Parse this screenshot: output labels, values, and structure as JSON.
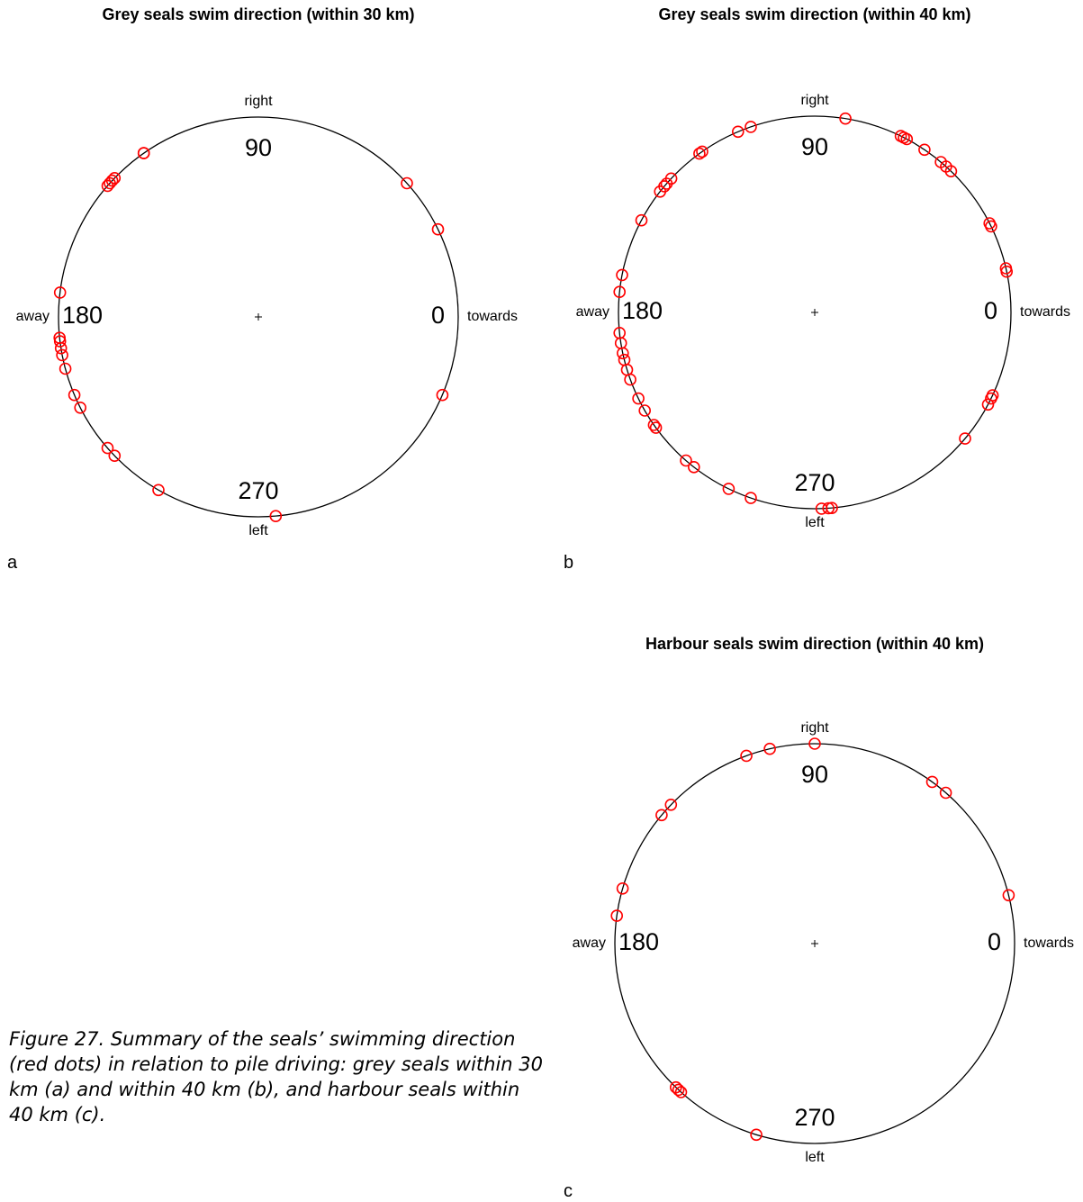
{
  "caption": "Figure 27. Summary of the seals’ swimming direction (red dots) in relation to pile driving: grey seals within 30 km (a) and within 40 km (b), and harbour seals within 40 km (c).",
  "colors": {
    "marker": "#ff0000",
    "circle": "#000000"
  },
  "chart_data": [
    {
      "id": "a",
      "type": "scatter",
      "subtype": "circular",
      "title": "Grey seals swim direction (within 30 km)",
      "panel_label": "a",
      "angle_labels": {
        "0": "0",
        "90": "90",
        "180": "180",
        "270": "270"
      },
      "direction_labels": {
        "0": "towards",
        "90": "right",
        "180": "away",
        "270": "left"
      },
      "angles_deg": [
        125,
        125,
        136,
        137,
        138,
        139,
        173,
        186,
        187,
        189,
        191,
        195,
        203,
        207,
        221,
        224,
        240,
        275,
        42,
        26,
        337
      ]
    },
    {
      "id": "b",
      "type": "scatter",
      "subtype": "circular",
      "title": "Grey seals swim direction (within 40 km)",
      "panel_label": "b",
      "angle_labels": {
        "0": "0",
        "90": "90",
        "180": "180",
        "270": "270"
      },
      "direction_labels": {
        "0": "towards",
        "90": "right",
        "180": "away",
        "270": "left"
      },
      "angles_deg": [
        81,
        64,
        63,
        62,
        56,
        50,
        48,
        46,
        27,
        26,
        13,
        12,
        335,
        334,
        332,
        320,
        272,
        274,
        275,
        251,
        244,
        232,
        229,
        216,
        215,
        210,
        206,
        200,
        197,
        194,
        192,
        189,
        186,
        174,
        169,
        152,
        142,
        140,
        139,
        137,
        126,
        125,
        113,
        109
      ]
    },
    {
      "id": "c",
      "type": "scatter",
      "subtype": "circular",
      "title": "Harbour seals swim direction (within 40 km)",
      "panel_label": "c",
      "angle_labels": {
        "0": "0",
        "90": "90",
        "180": "180",
        "270": "270"
      },
      "direction_labels": {
        "0": "towards",
        "90": "right",
        "180": "away",
        "270": "left"
      },
      "angles_deg": [
        90,
        103,
        110,
        54,
        49,
        14,
        136,
        140,
        164,
        172,
        227,
        228,
        226,
        253
      ]
    }
  ]
}
